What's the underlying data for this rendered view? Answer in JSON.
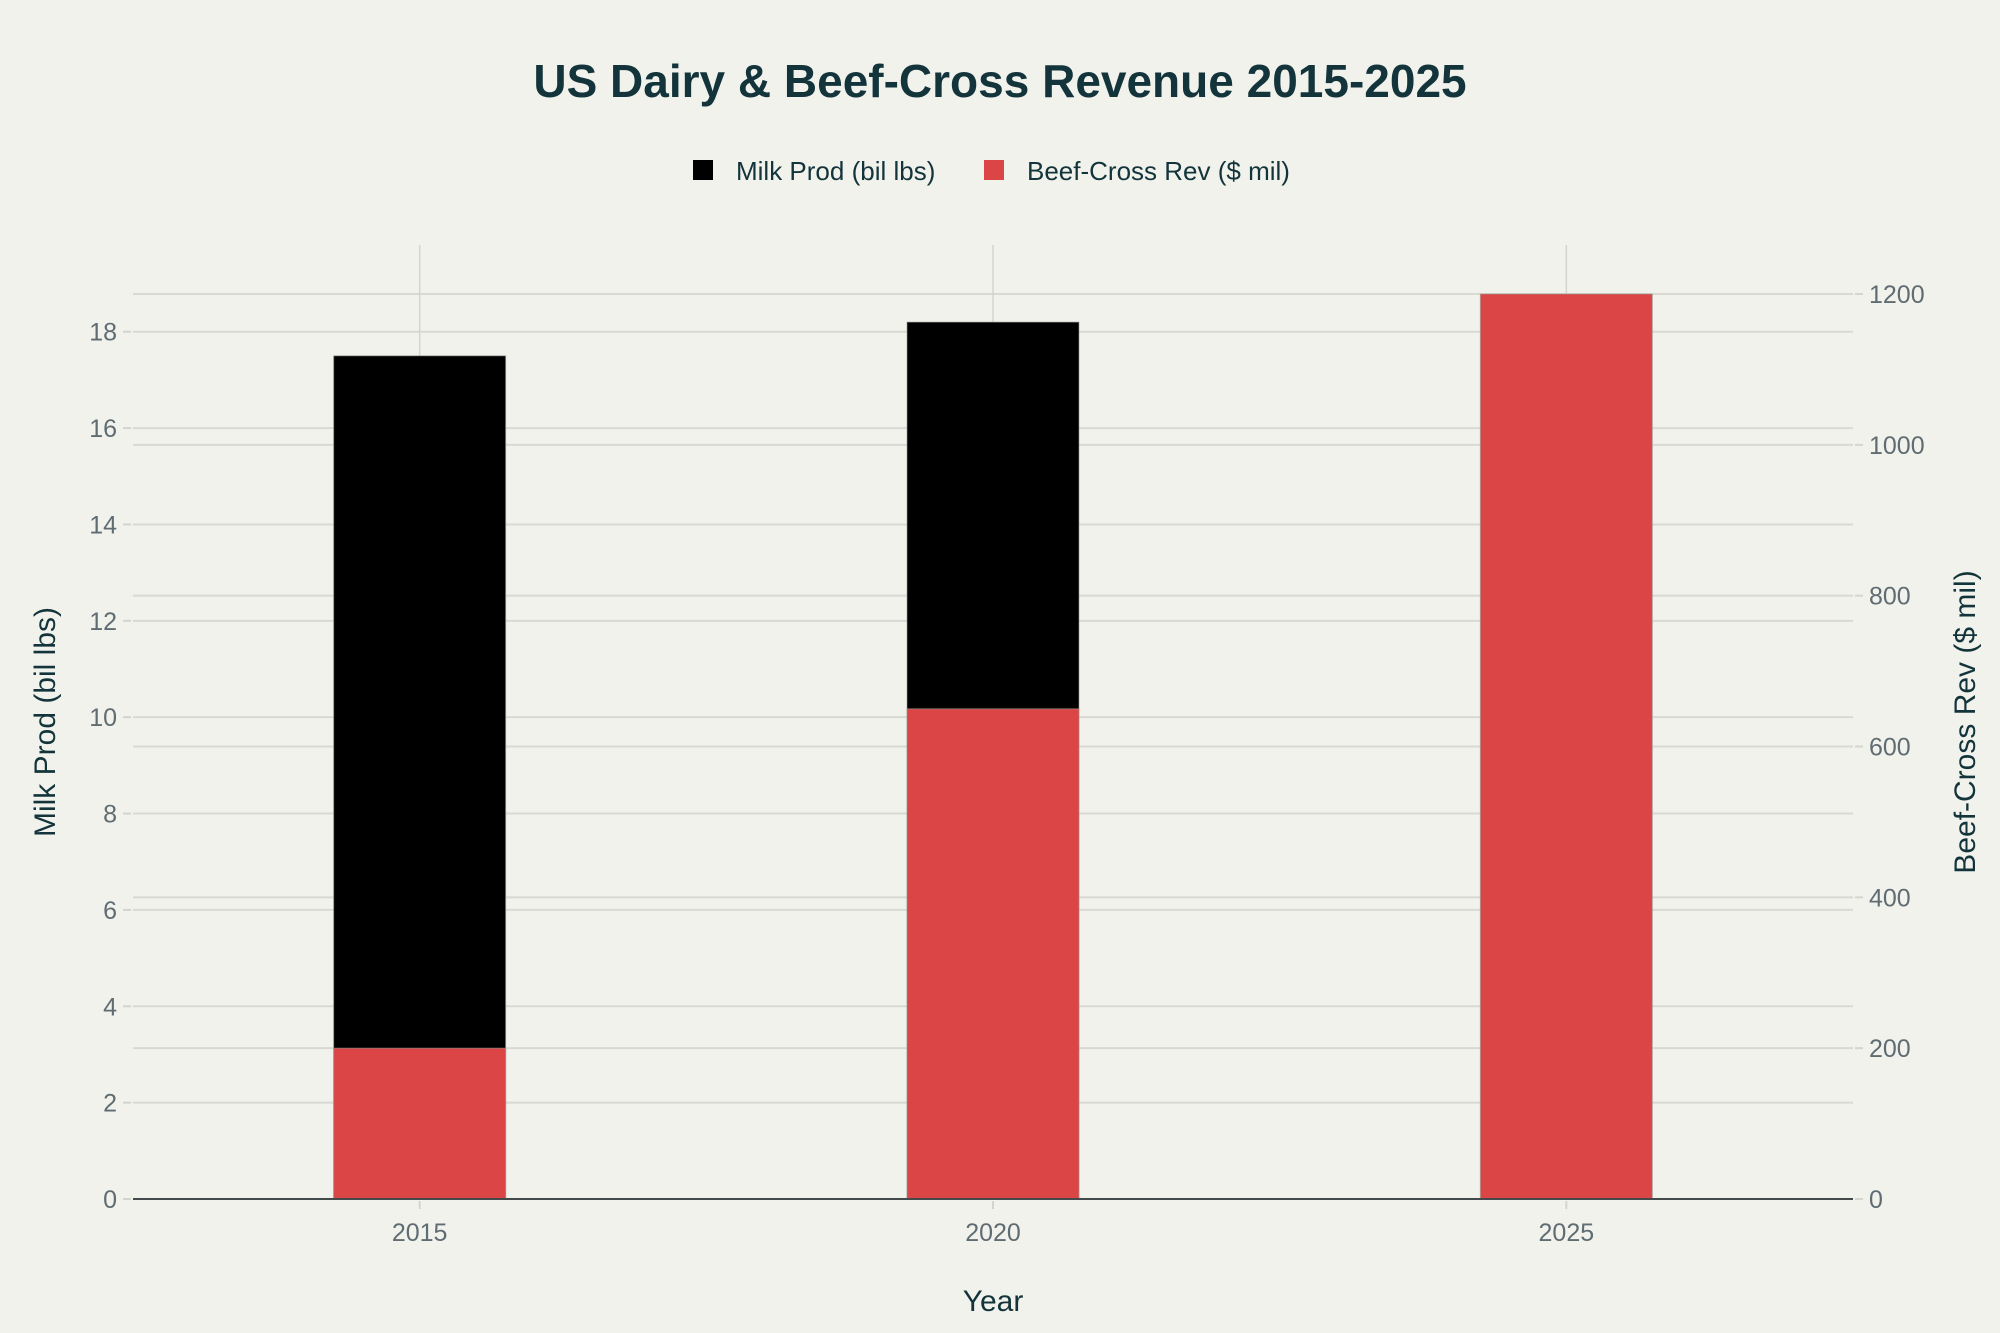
{
  "chart_data": {
    "type": "bar",
    "barmode": "overlay",
    "title": "US Dairy & Beef-Cross Revenue 2015-2025",
    "xlabel": "Year",
    "ylabel": "Milk Prod (bil lbs)",
    "y2label": "Beef-Cross Rev ($ mil)",
    "categories": [
      "2015",
      "2020",
      "2025"
    ],
    "ylim": [
      0,
      19.8
    ],
    "y2lim": [
      0,
      1265
    ],
    "yticks": [
      0,
      2,
      4,
      6,
      8,
      10,
      12,
      14,
      16,
      18
    ],
    "y2ticks": [
      0,
      200,
      400,
      600,
      800,
      1000,
      1200
    ],
    "grid": true,
    "legend_position": "top-center",
    "series": [
      {
        "name": "Milk Prod (bil lbs)",
        "axis": "left",
        "color": "#000000",
        "values": [
          17.5,
          18.2,
          null
        ]
      },
      {
        "name": "Beef-Cross Rev ($ mil)",
        "axis": "right",
        "color": "#db4545",
        "values": [
          200,
          650,
          1200
        ]
      }
    ]
  }
}
